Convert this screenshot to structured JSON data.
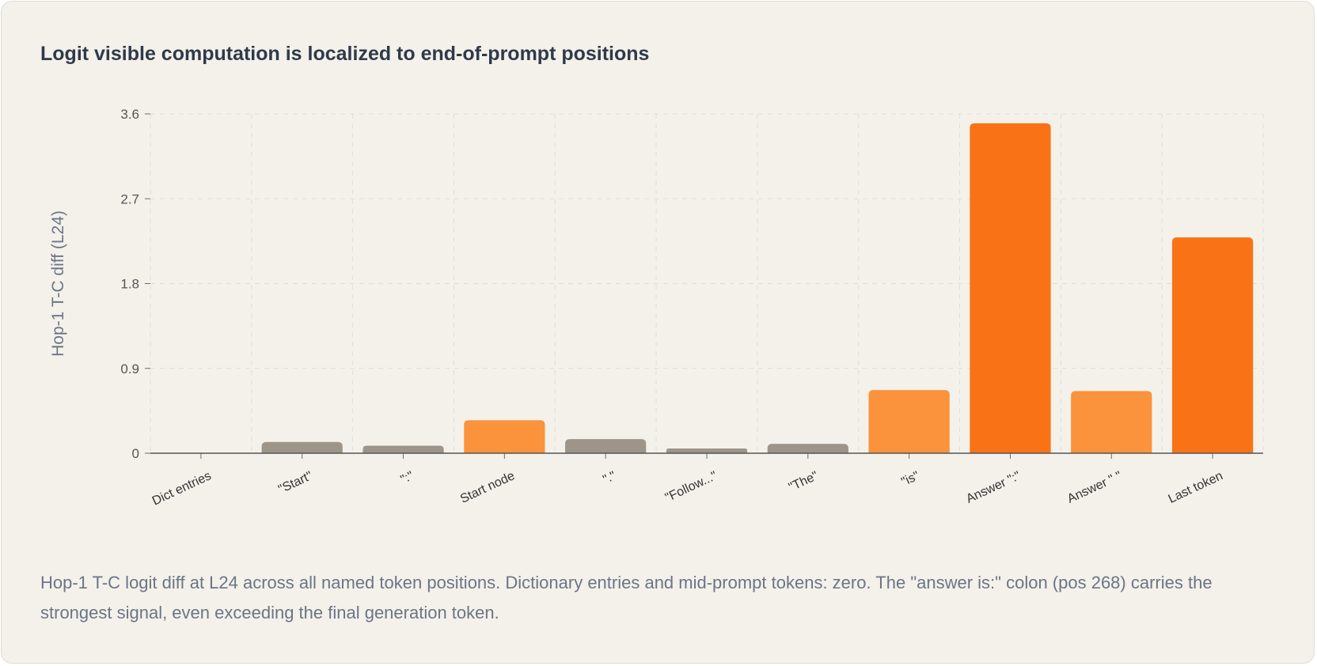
{
  "chart_data": {
    "type": "bar",
    "title": "Logit visible computation is localized to end-of-prompt positions",
    "ylabel": "Hop-1 T-C diff (L24)",
    "xlabel": "",
    "ylim": [
      0,
      3.6
    ],
    "yticks": [
      "0",
      "0.9",
      "1.8",
      "2.7",
      "3.6"
    ],
    "grid": true,
    "categories": [
      "Dict entries",
      "\"Start\"",
      "\":\"",
      "Start node",
      "\".\"",
      "\"Follow...\"",
      "\"The\"",
      "\"is\"",
      "Answer \":\"",
      "Answer \" \"",
      "Last token"
    ],
    "values": [
      0.0,
      0.12,
      0.08,
      0.35,
      0.15,
      0.05,
      0.1,
      0.67,
      3.5,
      0.66,
      2.29
    ],
    "bar_colors": [
      "#9e958a",
      "#9e958a",
      "#9e958a",
      "#fb923c",
      "#9e958a",
      "#9e958a",
      "#9e958a",
      "#fb923c",
      "#f97316",
      "#fb923c",
      "#f97316"
    ]
  },
  "caption": "Hop-1 T-C logit diff at L24 across all named token positions. Dictionary entries and mid-prompt tokens: zero. The \"answer is:\" colon (pos 268) carries the strongest signal, even exceeding the final generation token."
}
